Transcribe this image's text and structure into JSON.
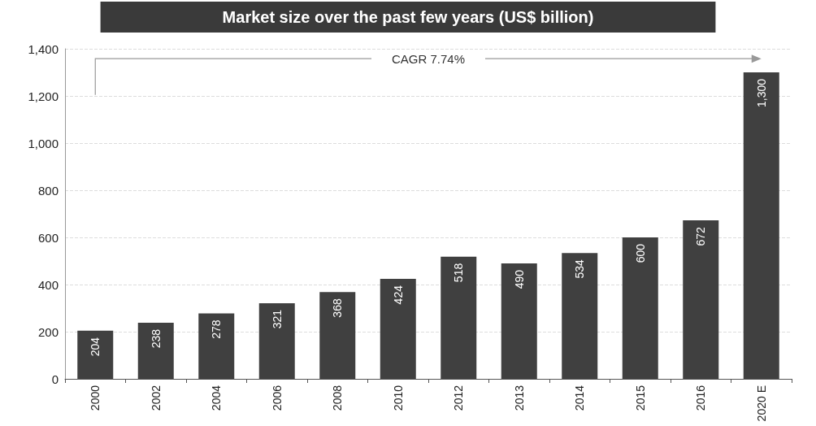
{
  "chart_data": {
    "type": "bar",
    "title": "Market size over the past few years (US$ billion)",
    "categories": [
      "2000",
      "2002",
      "2004",
      "2006",
      "2008",
      "2010",
      "2012",
      "2013",
      "2014",
      "2015",
      "2016",
      "2020 E"
    ],
    "values": [
      204,
      238,
      278,
      321,
      368,
      424,
      518,
      490,
      534,
      600,
      672,
      1300
    ],
    "color": "#404040",
    "ylim": [
      0,
      1400
    ],
    "yticks": [
      0,
      200,
      400,
      600,
      800,
      {
        "value": 1000,
        "label": "1,000"
      },
      {
        "value": 1200,
        "label": "1,200"
      },
      {
        "value": 1400,
        "label": "1,400"
      }
    ],
    "grid": "y",
    "data_labels": true,
    "value_labels": [
      "204",
      "238",
      "278",
      "321",
      "368",
      "424",
      "518",
      "490",
      "534",
      "600",
      "672",
      "1,300"
    ],
    "annotations": [
      "CAGR 7.74%"
    ]
  }
}
